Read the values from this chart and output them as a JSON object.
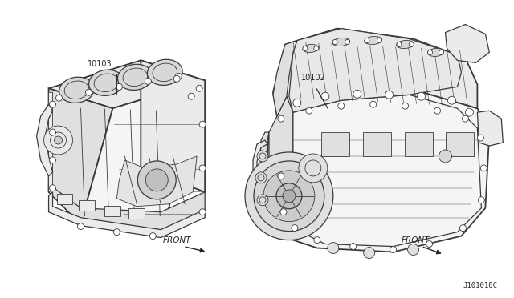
{
  "background_color": "#ffffff",
  "fig_width": 6.4,
  "fig_height": 3.72,
  "dpi": 100,
  "diagram_ref": "J101010C",
  "part_left_label": "10103",
  "part_right_label": "10102",
  "front_label": "FRONT",
  "line_color": "#3a3a3a",
  "text_color": "#222222",
  "label_fontsize": 7.0,
  "front_fontsize": 7.5,
  "ref_fontsize": 6.5,
  "face_color": "#f5f5f5",
  "face_color2": "#ebebeb",
  "face_color3": "#e0e0e0"
}
